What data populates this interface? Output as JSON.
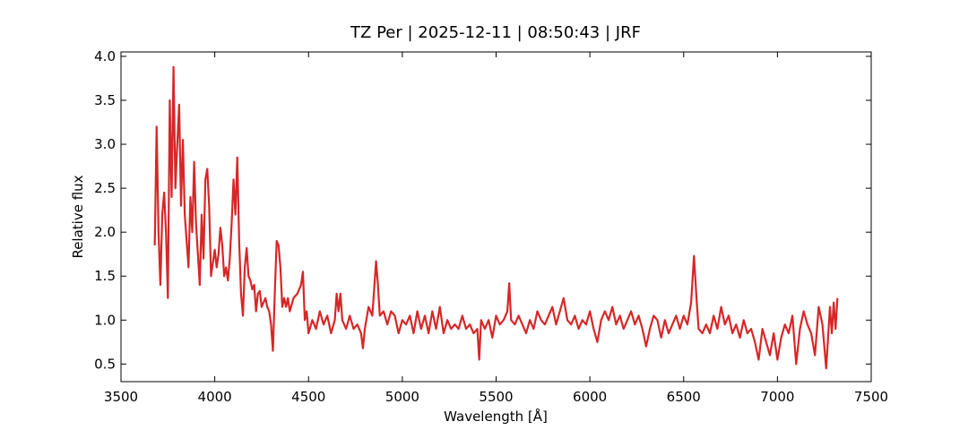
{
  "chart_data": {
    "type": "line",
    "title": "TZ Per | 2025-12-11 | 08:50:43 | JRF",
    "x_label": "Wavelength [Å]",
    "y_label": "Relative flux",
    "xlim": [
      3500,
      7500
    ],
    "ylim": [
      0.3,
      4.05
    ],
    "xticks": [
      3500,
      4000,
      4500,
      5000,
      5500,
      6000,
      6500,
      7000,
      7500
    ],
    "yticks": [
      0.5,
      {
        "value": 1,
        "label": "1.0"
      },
      1.5,
      {
        "value": 2,
        "label": "2.0"
      },
      2.5,
      {
        "value": 3,
        "label": "3.0"
      },
      3.5,
      {
        "value": 4,
        "label": "4.0"
      }
    ],
    "grid": false,
    "tick_direction": "in",
    "x": [
      3680,
      3690,
      3700,
      3710,
      3720,
      3730,
      3740,
      3750,
      3760,
      3770,
      3780,
      3790,
      3800,
      3810,
      3820,
      3830,
      3840,
      3850,
      3860,
      3870,
      3880,
      3890,
      3900,
      3910,
      3920,
      3930,
      3940,
      3950,
      3960,
      3970,
      3980,
      3990,
      4000,
      4010,
      4020,
      4030,
      4040,
      4050,
      4060,
      4070,
      4080,
      4090,
      4100,
      4110,
      4120,
      4130,
      4140,
      4150,
      4160,
      4170,
      4180,
      4190,
      4200,
      4210,
      4220,
      4230,
      4240,
      4250,
      4260,
      4270,
      4280,
      4290,
      4300,
      4310,
      4320,
      4330,
      4340,
      4350,
      4360,
      4370,
      4380,
      4390,
      4400,
      4420,
      4440,
      4460,
      4470,
      4480,
      4490,
      4500,
      4520,
      4540,
      4560,
      4580,
      4600,
      4620,
      4640,
      4650,
      4660,
      4670,
      4680,
      4700,
      4720,
      4740,
      4760,
      4780,
      4790,
      4800,
      4820,
      4840,
      4860,
      4870,
      4880,
      4900,
      4920,
      4940,
      4960,
      4980,
      5000,
      5020,
      5040,
      5060,
      5080,
      5100,
      5120,
      5140,
      5160,
      5180,
      5200,
      5220,
      5240,
      5260,
      5280,
      5300,
      5320,
      5340,
      5360,
      5380,
      5400,
      5410,
      5420,
      5440,
      5460,
      5480,
      5500,
      5520,
      5540,
      5560,
      5570,
      5580,
      5600,
      5620,
      5640,
      5660,
      5680,
      5700,
      5720,
      5740,
      5760,
      5780,
      5800,
      5820,
      5840,
      5860,
      5880,
      5900,
      5920,
      5940,
      5960,
      5980,
      6000,
      6020,
      6040,
      6060,
      6080,
      6100,
      6120,
      6140,
      6160,
      6180,
      6200,
      6220,
      6240,
      6260,
      6280,
      6300,
      6320,
      6340,
      6360,
      6380,
      6400,
      6420,
      6440,
      6460,
      6480,
      6500,
      6520,
      6540,
      6555,
      6570,
      6580,
      6600,
      6620,
      6640,
      6660,
      6680,
      6700,
      6720,
      6740,
      6760,
      6780,
      6800,
      6820,
      6840,
      6860,
      6880,
      6900,
      6920,
      6940,
      6960,
      6980,
      7000,
      7020,
      7040,
      7060,
      7080,
      7100,
      7120,
      7140,
      7160,
      7180,
      7200,
      7220,
      7240,
      7260,
      7280,
      7290,
      7300,
      7310,
      7320
    ],
    "series": [
      {
        "name": "TZ Per",
        "color": "#d62728",
        "values": [
          1.85,
          3.2,
          2.0,
          1.4,
          2.2,
          2.45,
          2.0,
          1.25,
          3.5,
          2.4,
          3.88,
          2.5,
          3.0,
          3.45,
          2.3,
          3.05,
          2.2,
          1.9,
          1.6,
          2.4,
          2.0,
          2.8,
          2.1,
          1.75,
          1.4,
          2.2,
          1.7,
          2.6,
          2.72,
          2.3,
          1.5,
          1.65,
          1.8,
          1.6,
          1.75,
          2.05,
          1.85,
          1.5,
          1.6,
          1.45,
          1.7,
          2.1,
          2.6,
          2.2,
          2.85,
          1.9,
          1.3,
          1.05,
          1.6,
          1.82,
          1.5,
          1.45,
          1.35,
          1.4,
          1.1,
          1.3,
          1.33,
          1.15,
          1.2,
          1.25,
          1.15,
          1.1,
          0.95,
          0.65,
          1.3,
          1.9,
          1.85,
          1.6,
          1.15,
          1.25,
          1.15,
          1.25,
          1.1,
          1.25,
          1.3,
          1.4,
          1.55,
          1.0,
          1.1,
          0.85,
          1.0,
          0.9,
          1.1,
          0.95,
          1.05,
          0.85,
          1.0,
          1.3,
          1.1,
          1.3,
          1.0,
          0.9,
          1.05,
          0.9,
          0.95,
          0.85,
          0.68,
          0.9,
          1.15,
          1.05,
          1.67,
          1.4,
          1.05,
          1.1,
          0.95,
          1.1,
          1.05,
          0.85,
          1.0,
          0.95,
          1.05,
          0.85,
          1.1,
          0.9,
          1.05,
          0.85,
          1.1,
          0.9,
          1.15,
          0.85,
          1.0,
          0.9,
          0.95,
          0.9,
          1.05,
          0.9,
          0.95,
          0.85,
          0.9,
          0.55,
          1.0,
          0.9,
          1.0,
          0.8,
          1.05,
          0.95,
          1.0,
          1.1,
          1.42,
          1.0,
          0.95,
          1.05,
          0.95,
          0.85,
          1.0,
          0.9,
          1.1,
          1.0,
          0.95,
          1.05,
          1.15,
          0.95,
          1.1,
          1.25,
          1.0,
          0.95,
          1.05,
          0.9,
          1.0,
          0.95,
          1.1,
          0.9,
          0.75,
          1.0,
          1.1,
          1.0,
          1.15,
          0.95,
          1.05,
          0.9,
          1.0,
          1.1,
          0.95,
          1.05,
          0.9,
          0.7,
          0.9,
          1.05,
          1.0,
          0.8,
          1.0,
          0.85,
          0.95,
          1.05,
          0.9,
          1.05,
          0.95,
          1.2,
          1.73,
          1.2,
          0.9,
          0.85,
          0.95,
          0.85,
          1.05,
          0.9,
          1.15,
          0.95,
          1.05,
          0.85,
          0.95,
          0.8,
          1.0,
          0.85,
          0.9,
          0.75,
          0.55,
          0.9,
          0.75,
          0.6,
          0.85,
          0.55,
          0.8,
          0.95,
          0.85,
          1.05,
          0.5,
          0.9,
          1.1,
          0.95,
          0.85,
          0.6,
          1.15,
          0.95,
          0.45,
          1.15,
          0.85,
          1.2,
          0.9,
          1.25
        ]
      }
    ]
  }
}
